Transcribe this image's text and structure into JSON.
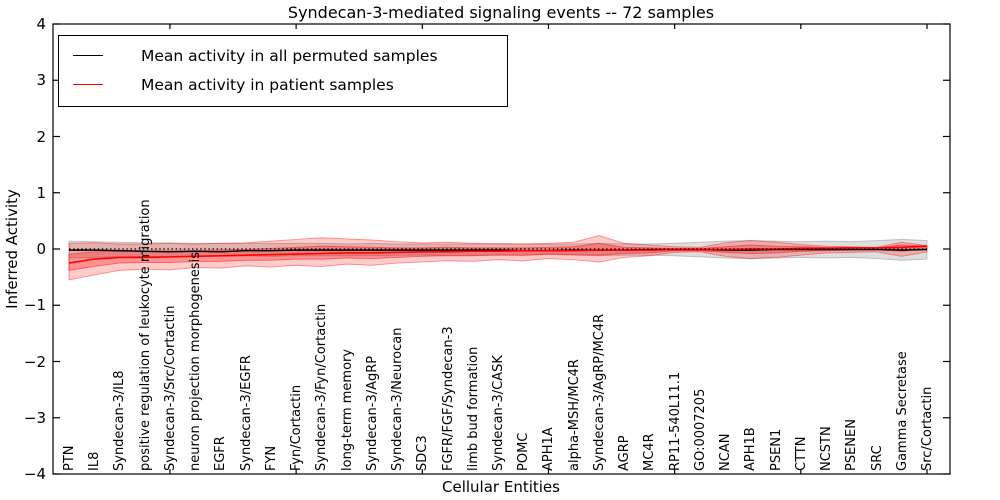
{
  "chart_data": {
    "type": "line",
    "title": "Syndecan-3-mediated signaling events -- 72 samples",
    "xlabel": "Cellular Entities",
    "ylabel": "Inferred Activity",
    "ylim": [
      -4,
      4
    ],
    "grid": false,
    "legend_position": "upper-left",
    "ytick_labels": [
      "4",
      "3",
      "2",
      "1",
      "0",
      "−1",
      "−2",
      "−3",
      "−4"
    ],
    "ytick_values": [
      4,
      3,
      2,
      1,
      0,
      -1,
      -2,
      -3,
      -4
    ],
    "zero_line": {
      "y": 0,
      "style": "dotted",
      "color": "#000000"
    },
    "categories": [
      "PTN",
      "IL8",
      "Syndecan-3/IL8",
      "positive regulation of leukocyte migration",
      "Syndecan-3/Src/Cortactin",
      "neuron projection morphogenesis",
      "EGFR",
      "Syndecan-3/EGFR",
      "FYN",
      "Fyn/Cortactin",
      "Syndecan-3/Fyn/Cortactin",
      "long-term memory",
      "Syndecan-3/AgRP",
      "Syndecan-3/Neurocan",
      "SDC3",
      "FGFR/FGF/Syndecan-3",
      "limb bud formation",
      "Syndecan-3/CASK",
      "POMC",
      "APH1A",
      "alpha-MSH/MC4R",
      "Syndecan-3/AgRP/MC4R",
      "AGRP",
      "MC4R",
      "RP11-540L11.1",
      "GO:0007205",
      "NCAN",
      "APH1B",
      "PSEN1",
      "CTTN",
      "NCSTN",
      "PSENEN",
      "SRC",
      "Gamma Secretase",
      "Src/Cortactin"
    ],
    "series": [
      {
        "name": "Mean activity in all permuted samples",
        "color": "#000000",
        "values": [
          -0.02,
          -0.02,
          -0.03,
          -0.04,
          -0.05,
          -0.04,
          -0.05,
          -0.03,
          -0.03,
          -0.02,
          -0.02,
          -0.02,
          -0.02,
          -0.02,
          -0.02,
          -0.02,
          -0.02,
          -0.02,
          -0.03,
          -0.03,
          -0.02,
          -0.02,
          -0.02,
          -0.01,
          -0.01,
          -0.01,
          -0.02,
          -0.02,
          -0.01,
          -0.01,
          -0.01,
          -0.01,
          -0.01,
          -0.02,
          -0.01
        ]
      },
      {
        "name": "Mean activity in patient samples",
        "color": "#ff0000",
        "values": [
          -0.25,
          -0.18,
          -0.15,
          -0.15,
          -0.14,
          -0.13,
          -0.12,
          -0.11,
          -0.1,
          -0.09,
          -0.08,
          -0.07,
          -0.07,
          -0.06,
          -0.05,
          -0.05,
          -0.04,
          -0.04,
          -0.03,
          -0.03,
          -0.03,
          -0.02,
          -0.02,
          -0.02,
          -0.01,
          -0.01,
          -0.01,
          0.0,
          0.0,
          0.01,
          0.01,
          0.02,
          0.02,
          0.03,
          0.05
        ]
      }
    ],
    "bands": [
      {
        "name": "permuted-range",
        "color": "#888888",
        "opacity": 0.28,
        "lower": [
          -0.16,
          -0.15,
          -0.14,
          -0.13,
          -0.14,
          -0.13,
          -0.13,
          -0.12,
          -0.13,
          -0.12,
          -0.12,
          -0.12,
          -0.12,
          -0.11,
          -0.11,
          -0.11,
          -0.11,
          -0.1,
          -0.11,
          -0.1,
          -0.11,
          -0.12,
          -0.11,
          -0.11,
          -0.12,
          -0.14,
          -0.16,
          -0.17,
          -0.16,
          -0.15,
          -0.16,
          -0.15,
          -0.17,
          -0.2,
          -0.18
        ],
        "upper": [
          0.14,
          0.13,
          0.12,
          0.11,
          0.11,
          0.1,
          0.1,
          0.1,
          0.1,
          0.1,
          0.1,
          0.09,
          0.1,
          0.09,
          0.09,
          0.09,
          0.09,
          0.08,
          0.09,
          0.08,
          0.09,
          0.1,
          0.09,
          0.09,
          0.1,
          0.12,
          0.14,
          0.15,
          0.14,
          0.13,
          0.14,
          0.13,
          0.15,
          0.17,
          0.15
        ]
      },
      {
        "name": "patient-range-outer",
        "color": "#ff0000",
        "opacity": 0.2,
        "lower": [
          -0.55,
          -0.46,
          -0.38,
          -0.36,
          -0.37,
          -0.33,
          -0.34,
          -0.3,
          -0.32,
          -0.29,
          -0.31,
          -0.27,
          -0.29,
          -0.25,
          -0.23,
          -0.21,
          -0.22,
          -0.19,
          -0.21,
          -0.17,
          -0.19,
          -0.23,
          -0.15,
          -0.12,
          -0.06,
          -0.05,
          -0.13,
          -0.17,
          -0.15,
          -0.11,
          -0.07,
          -0.06,
          -0.05,
          -0.13,
          -0.05
        ],
        "upper": [
          0.1,
          0.11,
          0.09,
          0.09,
          0.1,
          0.09,
          0.1,
          0.11,
          0.14,
          0.17,
          0.2,
          0.18,
          0.16,
          0.13,
          0.11,
          0.12,
          0.1,
          0.1,
          0.09,
          0.1,
          0.12,
          0.24,
          0.1,
          0.07,
          0.04,
          0.03,
          0.11,
          0.15,
          0.12,
          0.08,
          0.05,
          0.04,
          0.03,
          0.12,
          0.06
        ]
      },
      {
        "name": "patient-range-inner",
        "color": "#ff0000",
        "opacity": 0.28,
        "lower": [
          -0.38,
          -0.31,
          -0.25,
          -0.24,
          -0.24,
          -0.22,
          -0.22,
          -0.2,
          -0.2,
          -0.18,
          -0.18,
          -0.16,
          -0.17,
          -0.15,
          -0.13,
          -0.12,
          -0.12,
          -0.11,
          -0.11,
          -0.09,
          -0.1,
          -0.11,
          -0.08,
          -0.07,
          -0.03,
          -0.03,
          -0.06,
          -0.08,
          -0.07,
          -0.04,
          -0.03,
          -0.02,
          -0.01,
          -0.04,
          0.01
        ],
        "upper": [
          -0.09,
          -0.05,
          -0.04,
          -0.04,
          -0.03,
          -0.03,
          -0.02,
          -0.01,
          0.01,
          0.03,
          0.05,
          0.04,
          0.03,
          0.02,
          0.02,
          0.03,
          0.02,
          0.02,
          0.02,
          0.03,
          0.04,
          0.1,
          0.03,
          0.02,
          0.01,
          0.01,
          0.04,
          0.07,
          0.05,
          0.04,
          0.03,
          0.03,
          0.02,
          0.07,
          0.05
        ]
      }
    ]
  }
}
